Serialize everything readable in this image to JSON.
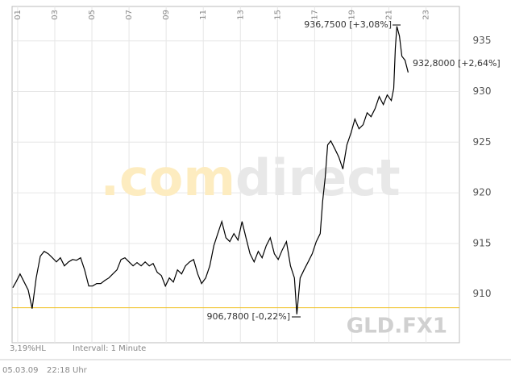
{
  "chart_data": {
    "type": "line",
    "watermark_prefix": ".com",
    "watermark_suffix": "direct",
    "symbol": "GLD.FX1",
    "annotations": [
      "936,7500 [+3,08%]",
      "932,8000 [+2,64%]",
      "906,7800 [-0,22%]"
    ],
    "footer_left": "3,19%HL",
    "footer_interval": "Intervall: 1 Minute",
    "date": "05.03.09",
    "time": "22:18 Uhr",
    "reference_line": 908.65,
    "reference_color": "#f0c020",
    "grid": true,
    "xlim": [
      0.7,
      24.8
    ],
    "ylim": [
      905.2,
      938.4
    ],
    "xticks": [
      {
        "value": 1,
        "label": "01"
      },
      {
        "value": 3,
        "label": "03"
      },
      {
        "value": 5,
        "label": "05"
      },
      {
        "value": 7,
        "label": "07"
      },
      {
        "value": 9,
        "label": "09"
      },
      11,
      13,
      15,
      17,
      19,
      21,
      23
    ],
    "yticks": [
      910,
      915,
      920,
      925,
      930,
      935
    ],
    "series": [
      {
        "color": "#000000",
        "x": [
          0.74,
          0.91,
          1.13,
          1.35,
          1.57,
          1.78,
          2.0,
          2.22,
          2.43,
          2.65,
          2.87,
          3.09,
          3.3,
          3.52,
          3.74,
          3.96,
          4.17,
          4.39,
          4.61,
          4.83,
          5.04,
          5.26,
          5.48,
          5.7,
          5.91,
          6.13,
          6.35,
          6.57,
          6.78,
          7.0,
          7.22,
          7.43,
          7.65,
          7.87,
          8.09,
          8.3,
          8.52,
          8.74,
          8.96,
          9.17,
          9.39,
          9.61,
          9.83,
          10.04,
          10.26,
          10.48,
          10.7,
          10.91,
          11.13,
          11.35,
          11.57,
          11.78,
          12.0,
          12.22,
          12.43,
          12.65,
          12.87,
          13.09,
          13.3,
          13.52,
          13.74,
          13.96,
          14.17,
          14.39,
          14.61,
          14.83,
          15.04,
          15.26,
          15.48,
          15.7,
          15.91,
          16.04,
          16.22,
          16.43,
          16.65,
          16.87,
          17.09,
          17.3,
          17.43,
          17.57,
          17.7,
          17.87,
          18.09,
          18.3,
          18.52,
          18.74,
          18.96,
          19.17,
          19.39,
          19.61,
          19.83,
          20.04,
          20.26,
          20.48,
          20.7,
          20.91,
          21.13,
          21.26,
          21.35,
          21.43,
          21.57,
          21.7,
          21.87,
          22.04
        ],
        "values": [
          910.64,
          911.19,
          911.99,
          911.19,
          910.4,
          908.57,
          911.59,
          913.74,
          914.22,
          913.98,
          913.58,
          913.18,
          913.58,
          912.79,
          913.18,
          913.42,
          913.34,
          913.58,
          912.39,
          910.8,
          910.8,
          911.04,
          911.04,
          911.35,
          911.59,
          911.99,
          912.39,
          913.42,
          913.58,
          913.18,
          912.79,
          913.11,
          912.79,
          913.18,
          912.79,
          913.03,
          912.15,
          911.83,
          910.8,
          911.59,
          911.19,
          912.39,
          911.99,
          912.79,
          913.18,
          913.42,
          911.99,
          911.04,
          911.59,
          912.79,
          914.78,
          915.97,
          917.17,
          915.57,
          915.18,
          915.97,
          915.33,
          917.17,
          915.57,
          913.98,
          913.18,
          914.22,
          913.58,
          914.78,
          915.57,
          913.98,
          913.42,
          914.38,
          915.18,
          912.79,
          911.59,
          908.01,
          911.59,
          912.39,
          913.18,
          913.98,
          915.18,
          915.97,
          919.16,
          921.54,
          924.73,
          925.13,
          924.33,
          923.54,
          922.34,
          924.73,
          925.92,
          927.28,
          926.32,
          926.72,
          927.91,
          927.52,
          928.31,
          929.51,
          928.71,
          929.67,
          929.11,
          930.3,
          934.28,
          936.43,
          935.48,
          933.49,
          933.09,
          931.89
        ]
      }
    ]
  }
}
